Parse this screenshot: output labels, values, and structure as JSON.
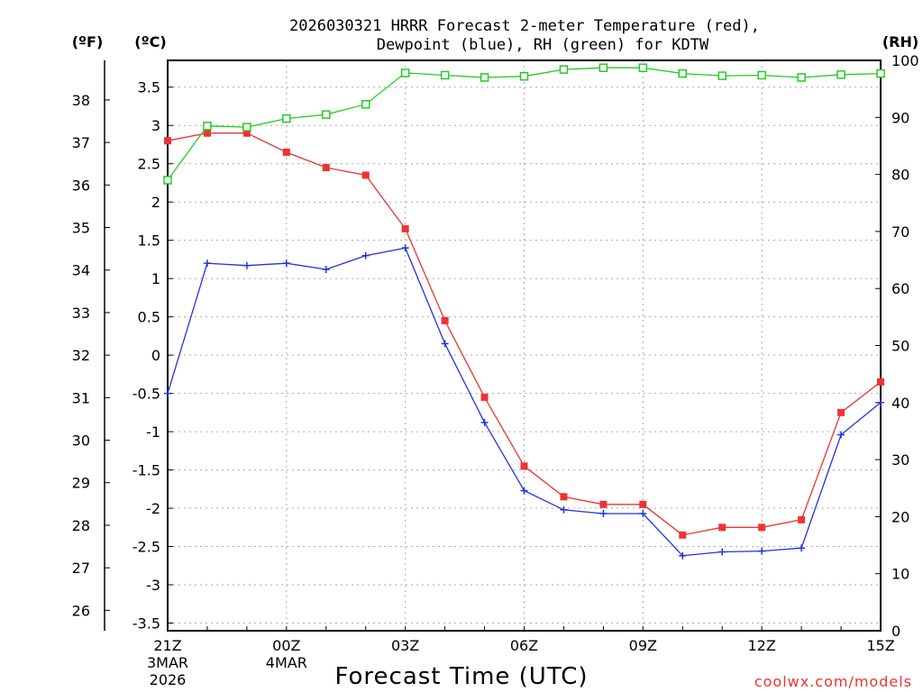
{
  "chart_data": {
    "type": "line",
    "title_line1": "2026030321 HRRR Forecast 2-meter Temperature (red),",
    "title_line2": "Dewpoint (blue), RH (green) for KDTW",
    "xlabel": "Forecast Time (UTC)",
    "credit": "coolwx.com/models",
    "unit_labels": {
      "f": "(ºF)",
      "c": "(ºC)",
      "rh": "(RH)"
    },
    "x_hours": [
      0,
      1,
      2,
      3,
      4,
      5,
      6,
      7,
      8,
      9,
      10,
      11,
      12,
      13,
      14,
      15,
      16,
      17,
      18
    ],
    "x_ticks": [
      {
        "hour": 0,
        "label": "21Z",
        "sub1": "3MAR",
        "sub2": "2026"
      },
      {
        "hour": 3,
        "label": "00Z",
        "sub1": "4MAR",
        "sub2": ""
      },
      {
        "hour": 6,
        "label": "03Z",
        "sub1": "",
        "sub2": ""
      },
      {
        "hour": 9,
        "label": "06Z",
        "sub1": "",
        "sub2": ""
      },
      {
        "hour": 12,
        "label": "09Z",
        "sub1": "",
        "sub2": ""
      },
      {
        "hour": 15,
        "label": "12Z",
        "sub1": "",
        "sub2": ""
      },
      {
        "hour": 18,
        "label": "15Z",
        "sub1": "",
        "sub2": ""
      }
    ],
    "ylim_c": [
      -3.6,
      3.85
    ],
    "y_ticks_c": [
      "-3.5",
      "-3",
      "-2.5",
      "-2",
      "-1.5",
      "-1",
      "-0.5",
      "0",
      "0.5",
      "1",
      "1.5",
      "2",
      "2.5",
      "3",
      "3.5"
    ],
    "y_ticks_f": [
      "26",
      "27",
      "28",
      "29",
      "30",
      "31",
      "32",
      "33",
      "34",
      "35",
      "36",
      "37",
      "38"
    ],
    "ylim_rh": [
      0,
      100
    ],
    "y_ticks_rh": [
      "0",
      "10",
      "20",
      "30",
      "40",
      "50",
      "60",
      "70",
      "80",
      "90",
      "100"
    ],
    "series": [
      {
        "name": "Temperature",
        "color": "#ee3333",
        "marker": "filled-square",
        "values": [
          2.8,
          2.9,
          2.9,
          2.65,
          2.45,
          2.35,
          1.65,
          0.45,
          -0.55,
          -1.45,
          -1.85,
          -1.95,
          -1.95,
          -2.35,
          -2.25,
          -2.25,
          -2.15,
          -0.75,
          -0.35
        ]
      },
      {
        "name": "Dewpoint",
        "color": "#2233dd",
        "marker": "plus",
        "values": [
          -0.5,
          1.2,
          1.17,
          1.2,
          1.12,
          1.3,
          1.4,
          0.15,
          -0.88,
          -1.77,
          -2.02,
          -2.07,
          -2.07,
          -2.62,
          -2.57,
          -2.56,
          -2.52,
          -1.04,
          -0.62
        ]
      },
      {
        "name": "RH",
        "color": "#22cc22",
        "marker": "open-square",
        "axis": "rh",
        "values": [
          79,
          88.5,
          88.3,
          89.8,
          90.5,
          92.3,
          97.8,
          97.4,
          97.0,
          97.2,
          98.4,
          98.7,
          98.7,
          97.7,
          97.3,
          97.4,
          97.0,
          97.5,
          97.7
        ]
      }
    ]
  }
}
